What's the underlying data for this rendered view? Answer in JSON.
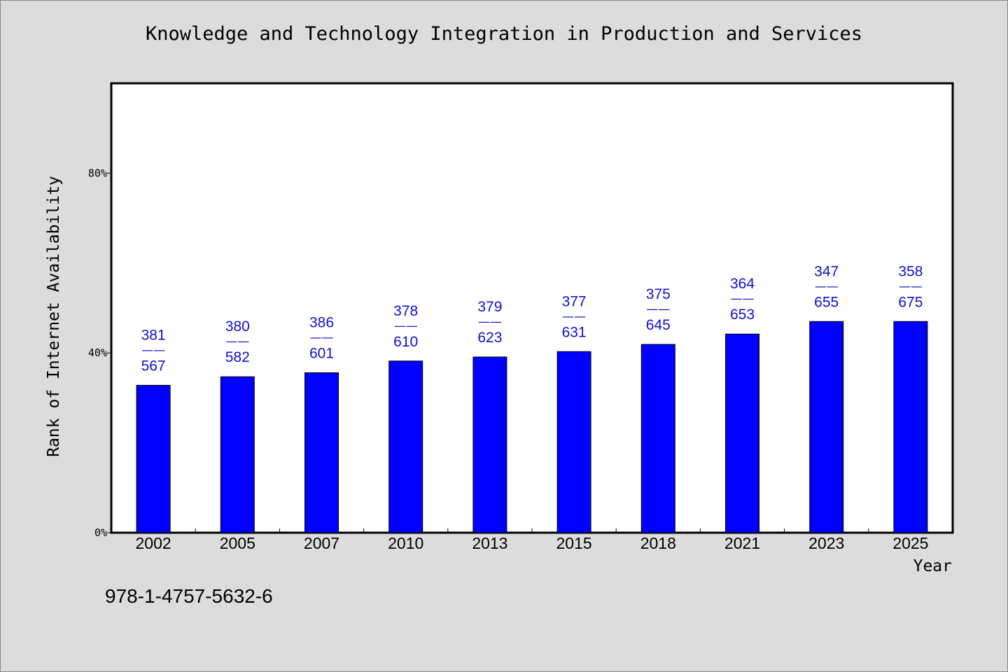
{
  "chart_data": {
    "type": "bar",
    "title": "Knowledge and Technology Integration in Production and Services",
    "xlabel": "Year",
    "ylabel": "Rank of Internet Availability",
    "categories": [
      "2002",
      "2005",
      "2007",
      "2010",
      "2013",
      "2015",
      "2018",
      "2021",
      "2023",
      "2025"
    ],
    "values": [
      32.8,
      34.7,
      35.6,
      38.2,
      39.1,
      40.3,
      41.9,
      44.2,
      47.0,
      47.0
    ],
    "labels": [
      {
        "top": "381",
        "sep": "——",
        "bottom": "567"
      },
      {
        "top": "380",
        "sep": "——",
        "bottom": "582"
      },
      {
        "top": "386",
        "sep": "——",
        "bottom": "601"
      },
      {
        "top": "378",
        "sep": "——",
        "bottom": "610"
      },
      {
        "top": "379",
        "sep": "——",
        "bottom": "623"
      },
      {
        "top": "377",
        "sep": "——",
        "bottom": "631"
      },
      {
        "top": "375",
        "sep": "——",
        "bottom": "645"
      },
      {
        "top": "364",
        "sep": "——",
        "bottom": "653"
      },
      {
        "top": "347",
        "sep": "——",
        "bottom": "655"
      },
      {
        "top": "358",
        "sep": "——",
        "bottom": "675"
      }
    ],
    "ylim": [
      0,
      100
    ],
    "yticks": [
      0,
      40,
      80
    ],
    "ytick_labels": [
      "0%",
      "40%",
      "80%"
    ],
    "grid": false,
    "legend": "none",
    "bar_color": "#0000ff",
    "label_color": "#1010cc"
  },
  "footer": {
    "isbn": "978-1-4757-5632-6"
  },
  "colors": {
    "background": "#dcdcdc",
    "plot_area": "#ffffff",
    "axis": "#000000"
  }
}
